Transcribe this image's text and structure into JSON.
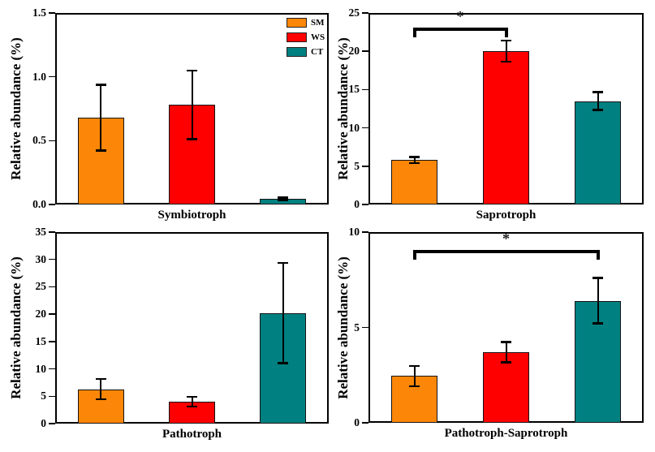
{
  "legend": {
    "items": [
      {
        "label": "SM",
        "color": "#FC8608"
      },
      {
        "label": "WS",
        "color": "#FE0000"
      },
      {
        "label": "CT",
        "color": "#008080"
      }
    ]
  },
  "chart_data": [
    {
      "type": "bar",
      "xlabel": "Symbiotroph",
      "ylabel": "Relative abundance (%)",
      "ylim": [
        0,
        1.5
      ],
      "yticks": [
        0,
        0.5,
        1.0,
        1.5
      ],
      "ytick_labels": [
        "0.0",
        "0.5",
        "1.0",
        "1.5"
      ],
      "categories": [
        "SM",
        "WS",
        "CT"
      ],
      "values": [
        0.68,
        0.78,
        0.045
      ],
      "errors": [
        0.26,
        0.27,
        0.012
      ],
      "colors": [
        "#FC8608",
        "#FE0000",
        "#008080"
      ],
      "grid": false,
      "legend_position": "top-right"
    },
    {
      "type": "bar",
      "xlabel": "Saprotroph",
      "ylabel": "Relative abundance (%)",
      "ylim": [
        0,
        25
      ],
      "yticks": [
        0,
        5,
        10,
        15,
        20,
        25
      ],
      "ytick_labels": [
        "0",
        "5",
        "10",
        "15",
        "20",
        "25"
      ],
      "categories": [
        "SM",
        "WS",
        "CT"
      ],
      "values": [
        5.8,
        20.0,
        13.5
      ],
      "errors": [
        0.4,
        1.4,
        1.2
      ],
      "colors": [
        "#FC8608",
        "#FE0000",
        "#008080"
      ],
      "grid": false,
      "significance": {
        "from": "SM",
        "to": "WS",
        "y": 22.9,
        "label": "*"
      }
    },
    {
      "type": "bar",
      "xlabel": "Pathotroph",
      "ylabel": "Relative abundance (%)",
      "ylim": [
        0,
        35
      ],
      "yticks": [
        0,
        5,
        10,
        15,
        20,
        25,
        30,
        35
      ],
      "ytick_labels": [
        "0",
        "5",
        "10",
        "15",
        "20",
        "25",
        "30",
        "35"
      ],
      "categories": [
        "SM",
        "WS",
        "CT"
      ],
      "values": [
        6.3,
        4.0,
        20.2
      ],
      "errors": [
        1.9,
        0.9,
        9.2
      ],
      "colors": [
        "#FC8608",
        "#FE0000",
        "#008080"
      ],
      "grid": false
    },
    {
      "type": "bar",
      "xlabel": "Pathotroph-Saprotroph",
      "ylabel": "Relative abundance (%)",
      "ylim": [
        0,
        10
      ],
      "yticks": [
        0,
        5,
        10
      ],
      "ytick_labels": [
        "0",
        "5",
        "10"
      ],
      "categories": [
        "SM",
        "WS",
        "CT"
      ],
      "values": [
        2.45,
        3.7,
        6.4
      ],
      "errors": [
        0.55,
        0.55,
        1.2
      ],
      "colors": [
        "#FC8608",
        "#FE0000",
        "#008080"
      ],
      "grid": false,
      "significance": {
        "from": "SM",
        "to": "CT",
        "y": 9.0,
        "label": "*"
      }
    }
  ]
}
